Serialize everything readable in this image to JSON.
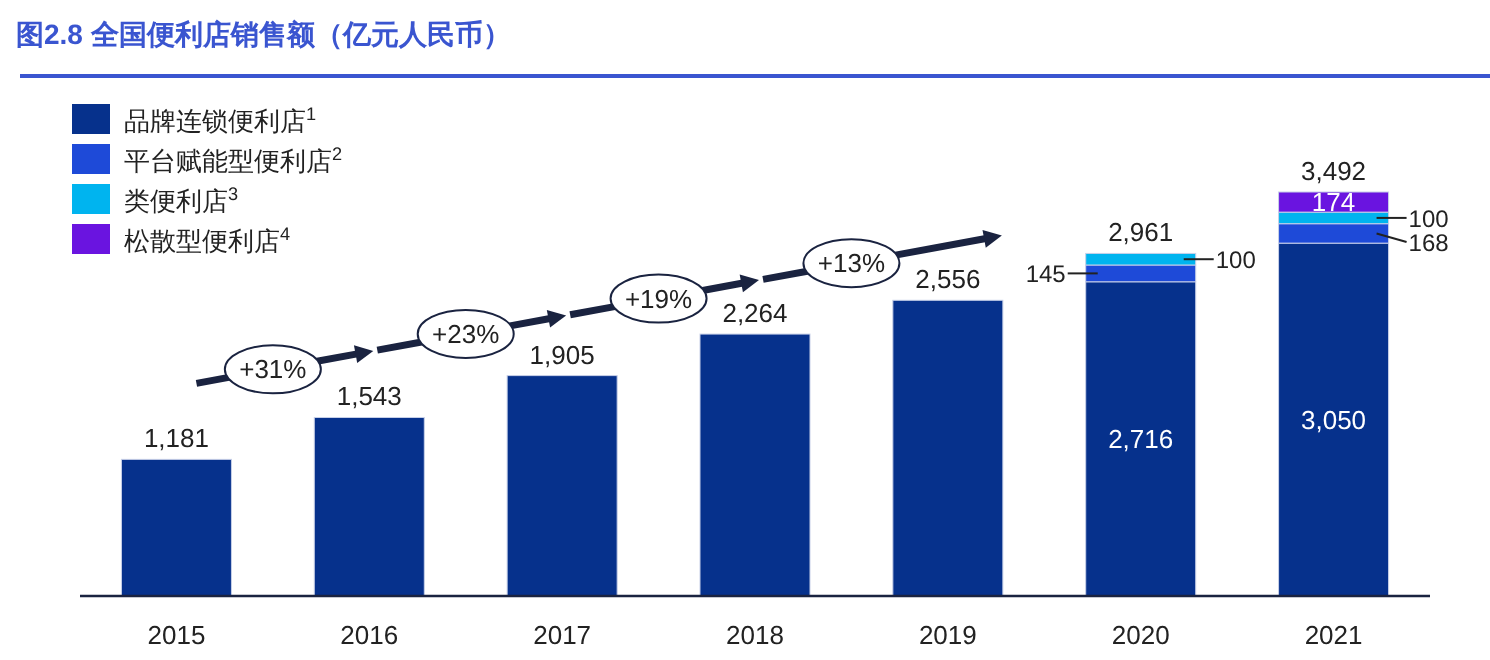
{
  "chart_data": {
    "type": "bar",
    "title": "图2.8 全国便利店销售额（亿元人民币）",
    "stacked": true,
    "legend": "top left",
    "categories": [
      "2015",
      "2016",
      "2017",
      "2018",
      "2019",
      "2020",
      "2021"
    ],
    "series": [
      {
        "name": "品牌连锁便利店$^{1}$",
        "color": "#06318c",
        "values": [
          1181,
          1543,
          1905,
          2264,
          2556,
          2716,
          3050
        ],
        "value_labels": [
          null,
          null,
          null,
          null,
          null,
          "2,716",
          "3,050"
        ]
      },
      {
        "name": "平台赋能型便利店$^{2}$",
        "color": "#1e4ad8",
        "values": [
          null,
          null,
          null,
          null,
          null,
          145,
          168
        ],
        "value_labels": [
          null,
          null,
          null,
          null,
          null,
          "145",
          "168"
        ]
      },
      {
        "name": "类便利店$^{3}$",
        "color": "#00b4ef",
        "values": [
          null,
          null,
          null,
          null,
          null,
          100,
          100
        ],
        "value_labels": [
          null,
          null,
          null,
          null,
          null,
          "100",
          "100"
        ]
      },
      {
        "name": "松散型便利店$^{4}$",
        "color": "#6a14e0",
        "values": [
          null,
          null,
          null,
          null,
          null,
          null,
          174
        ],
        "value_labels": [
          null,
          null,
          null,
          null,
          null,
          null,
          "174"
        ]
      }
    ],
    "totals": [
      "1,181",
      "1,543",
      "1,905",
      "2,264",
      "2,556",
      "2,961",
      "3,492"
    ],
    "annotations": [
      "+31%",
      "+23%",
      "+19%",
      "+13%"
    ]
  }
}
